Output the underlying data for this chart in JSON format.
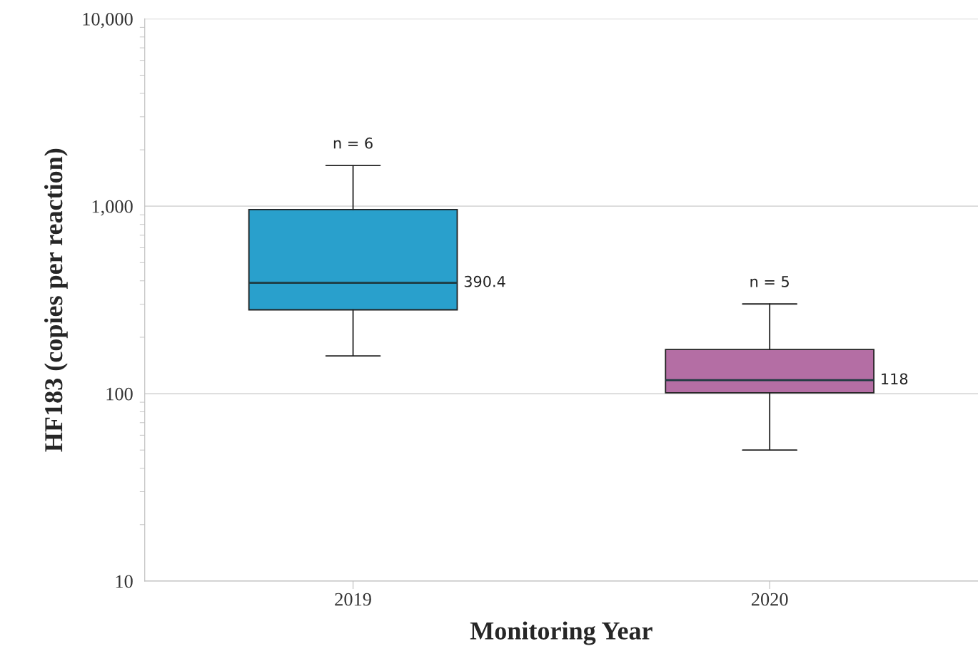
{
  "chart_data": {
    "type": "box",
    "xlabel": "Monitoring Year",
    "ylabel": "HF183 (copies per reaction)",
    "categories": [
      "2019",
      "2020"
    ],
    "boxes": [
      {
        "low": 159,
        "q1": 280,
        "median": 390.4,
        "q3": 960,
        "high": 1650
      },
      {
        "low": 50,
        "q1": 101,
        "median": 118,
        "q3": 172,
        "high": 301
      }
    ],
    "colors": [
      "#29a0cc",
      "#b46ea4"
    ],
    "log": true,
    "ylim": [
      10,
      10000
    ],
    "yticks": [
      {
        "value": 10,
        "label": "10"
      },
      {
        "value": 100,
        "label": "100"
      },
      {
        "value": 1000,
        "label": "1,000"
      },
      {
        "value": 10000,
        "label": "10,000"
      }
    ],
    "grid": "y",
    "annotations": [
      {
        "text": "n = 6",
        "x": "2019",
        "y": 1650
      },
      "390.4",
      {
        "text": "n = 5",
        "x": "2020",
        "y": 301
      },
      "118"
    ]
  }
}
